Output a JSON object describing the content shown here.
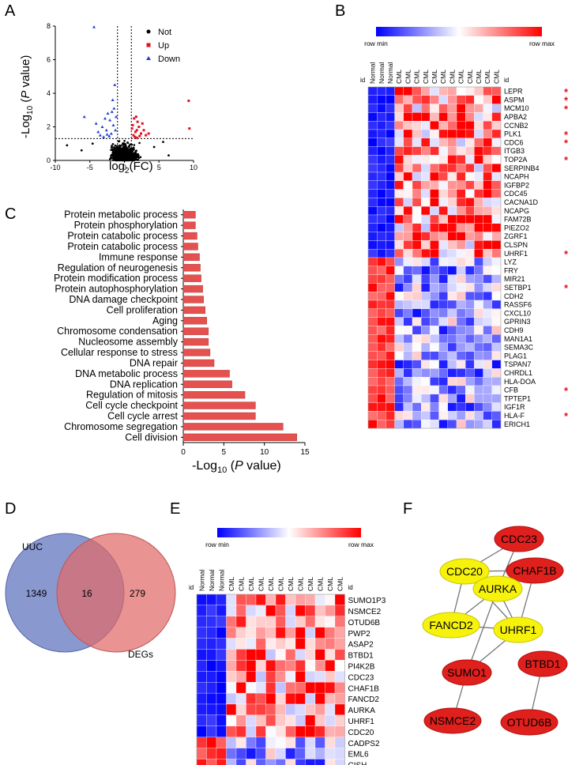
{
  "panel_labels": {
    "a": "A",
    "b": "B",
    "c": "C",
    "d": "D",
    "e": "E",
    "f": "F"
  },
  "chart_data": [
    {
      "panel": "A",
      "type": "scatter",
      "title": "",
      "xlabel_main": "log",
      "xlabel_sub": "2",
      "xlabel_rest": "(FC)",
      "ylabel_pre": "-Log",
      "ylabel_sub": "10",
      "ylabel_open": " (",
      "ylabel_italic": "P",
      "ylabel_rest": " value)",
      "xlim": [
        -10,
        10
      ],
      "ylim": [
        0,
        8
      ],
      "xticks": [
        "-10",
        "-5",
        "0",
        "5",
        "10"
      ],
      "yticks": [
        "0",
        "2",
        "4",
        "6",
        "8"
      ],
      "fc_cutoffs": [
        -1,
        1
      ],
      "p_cutoff": 1.3,
      "legend": [
        {
          "name": "Not",
          "color": "#000000",
          "marker": "circle"
        },
        {
          "name": "Up",
          "color": "#e4101f",
          "marker": "square"
        },
        {
          "name": "Down",
          "color": "#1f3fd6",
          "marker": "triangle"
        }
      ],
      "up_points": [
        [
          9.3,
          3.55
        ],
        [
          9.4,
          1.9
        ],
        [
          1.8,
          1.8
        ],
        [
          2.1,
          2.0
        ],
        [
          1.3,
          1.5
        ],
        [
          1.6,
          1.7
        ],
        [
          2.4,
          1.6
        ],
        [
          1.2,
          2.1
        ],
        [
          1.9,
          2.3
        ],
        [
          1.5,
          1.4
        ],
        [
          2.8,
          1.8
        ],
        [
          3.1,
          1.5
        ],
        [
          1.4,
          2.5
        ],
        [
          2.2,
          1.45
        ],
        [
          1.7,
          2.6
        ],
        [
          2.6,
          2.2
        ],
        [
          1.1,
          1.9
        ],
        [
          3.5,
          1.6
        ],
        [
          1.8,
          1.35
        ]
      ],
      "down_points": [
        [
          -4.4,
          7.95
        ],
        [
          -5.8,
          2.6
        ],
        [
          -4.1,
          2.2
        ],
        [
          -3.2,
          2.0
        ],
        [
          -2.6,
          1.8
        ],
        [
          -2.1,
          2.4
        ],
        [
          -1.7,
          3.6
        ],
        [
          -1.4,
          4.5
        ],
        [
          -3.5,
          1.5
        ],
        [
          -2.4,
          2.8
        ],
        [
          -1.9,
          1.6
        ],
        [
          -1.3,
          1.8
        ],
        [
          -2.8,
          2.5
        ],
        [
          -1.6,
          2.1
        ],
        [
          -3.8,
          1.7
        ],
        [
          -1.2,
          2.6
        ],
        [
          -2.2,
          1.45
        ],
        [
          -1.5,
          3.1
        ],
        [
          -3.0,
          1.4
        ],
        [
          -1.8,
          2.9
        ],
        [
          -2.5,
          1.55
        ]
      ],
      "not_points_note": "dense black cloud centered at 0"
    },
    {
      "panel": "C",
      "type": "bar",
      "orientation": "horizontal",
      "xlabel_pre": "-Log",
      "xlabel_sub": "10",
      "xlabel_open": " (",
      "xlabel_italic": "P",
      "xlabel_rest": " value)",
      "xlim": [
        0,
        15
      ],
      "xticks": [
        "0",
        "5",
        "10",
        "15"
      ],
      "color": "#e5514e",
      "categories": [
        "Protein metabolic process",
        "Protein phosphorylation",
        "Protein catabolic process",
        "Protein catabolic process",
        "Immune response",
        "Regulation of neurogenesis",
        "Protein modification process",
        "Protein autophosphorylation",
        "DNA damage checkpoint",
        "Cell proliferation",
        "Aging",
        "Chromosome condensation",
        "Nucleosome assembly",
        "Cellular response to stress",
        "DNA repair",
        "DNA metabolic process",
        "DNA replication",
        "Regulation of mitosis",
        "Cell cycle checkpoint",
        "Cell cycle arrest",
        "Chromosome segregation",
        "Cell division"
      ],
      "values": [
        1.5,
        1.5,
        1.7,
        1.8,
        2.0,
        2.1,
        2.2,
        2.4,
        2.5,
        2.7,
        2.9,
        3.1,
        3.1,
        3.3,
        3.8,
        5.7,
        6.0,
        7.6,
        8.9,
        8.9,
        12.3,
        14.0
      ]
    },
    {
      "panel": "D",
      "type": "venn",
      "sets": [
        {
          "name": "UUC",
          "only": "1349",
          "color": "#6b7fc4"
        },
        {
          "name": "DEGs",
          "only": "279",
          "color": "#e06a6a"
        }
      ],
      "intersection": "16"
    },
    {
      "panel": "B",
      "type": "heatmap",
      "scale_min_label": "row min",
      "scale_max_label": "row max",
      "id_label": "id",
      "columns": [
        "Normal",
        "Normal",
        "Normal",
        "CML",
        "CML",
        "CML",
        "CML",
        "CML",
        "CML",
        "CML",
        "CML",
        "CML",
        "CML",
        "CML",
        "CML"
      ],
      "rows": [
        "LEPR",
        "ASPM",
        "MCM10",
        "APBA2",
        "CCNB2",
        "PLK1",
        "CDC6",
        "ITGB3",
        "TOP2A",
        "SERPINB4",
        "NCAPH",
        "IGFBP2",
        "CDC45",
        "CACNA1D",
        "NCAPG",
        "FAM72B",
        "PIEZO2",
        "ZGRF1",
        "CLSPN",
        "UHRF1",
        "LYZ",
        "FRY",
        "MIR21",
        "SETBP1",
        "CDH2",
        "RASSF6",
        "CXCL10",
        "GPRIN3",
        "CDH9",
        "MAN1A1",
        "SEMA3C",
        "PLAG1",
        "TSPAN7",
        "CHRDL1",
        "HLA-DOA",
        "CFB",
        "TPTEP1",
        "IGF1R",
        "HLA-F",
        "ERICH1"
      ],
      "starred": [
        "LEPR",
        "ASPM",
        "MCM10",
        "PLK1",
        "CDC6",
        "TOP2A",
        "UHRF1",
        "SETBP1",
        "CFB",
        "HLA-F"
      ],
      "star_symbol": "*",
      "up_rows": 20
    },
    {
      "panel": "E",
      "type": "heatmap",
      "scale_min_label": "row min",
      "scale_max_label": "row max",
      "id_label": "id",
      "columns": [
        "Normal",
        "Normal",
        "Normal",
        "CML",
        "CML",
        "CML",
        "CML",
        "CML",
        "CML",
        "CML",
        "CML",
        "CML",
        "CML",
        "CML",
        "CML"
      ],
      "rows": [
        "SUMO1P3",
        "NSMCE2",
        "OTUD6B",
        "PWP2",
        "ASAP2",
        "BTBD1",
        "PI4K2B",
        "CDC23",
        "CHAF1B",
        "FANCD2",
        "AURKA",
        "UHRF1",
        "CDC20",
        "CADPS2",
        "EML6",
        "CISH"
      ],
      "up_rows": 13
    },
    {
      "panel": "F",
      "type": "network",
      "nodes": [
        {
          "id": "CDC23",
          "color": "#e0201d"
        },
        {
          "id": "CDC20",
          "color": "#f6f20c"
        },
        {
          "id": "CHAF1B",
          "color": "#e0201d"
        },
        {
          "id": "AURKA",
          "color": "#f6f20c"
        },
        {
          "id": "FANCD2",
          "color": "#f6f20c"
        },
        {
          "id": "UHRF1",
          "color": "#f6f20c"
        },
        {
          "id": "SUMO1",
          "color": "#e0201d"
        },
        {
          "id": "BTBD1",
          "color": "#e0201d"
        },
        {
          "id": "NSMCE2",
          "color": "#e0201d"
        },
        {
          "id": "OTUD6B",
          "color": "#e0201d"
        }
      ],
      "edges": [
        [
          "CDC23",
          "CDC20"
        ],
        [
          "CDC23",
          "AURKA"
        ],
        [
          "CDC20",
          "CHAF1B"
        ],
        [
          "CDC20",
          "AURKA"
        ],
        [
          "CDC20",
          "FANCD2"
        ],
        [
          "CDC20",
          "UHRF1"
        ],
        [
          "CHAF1B",
          "AURKA"
        ],
        [
          "CHAF1B",
          "UHRF1"
        ],
        [
          "AURKA",
          "FANCD2"
        ],
        [
          "AURKA",
          "UHRF1"
        ],
        [
          "FANCD2",
          "UHRF1"
        ],
        [
          "UHRF1",
          "SUMO1"
        ],
        [
          "AURKA",
          "SUMO1"
        ],
        [
          "SUMO1",
          "NSMCE2"
        ],
        [
          "BTBD1",
          "OTUD6B"
        ]
      ]
    }
  ]
}
